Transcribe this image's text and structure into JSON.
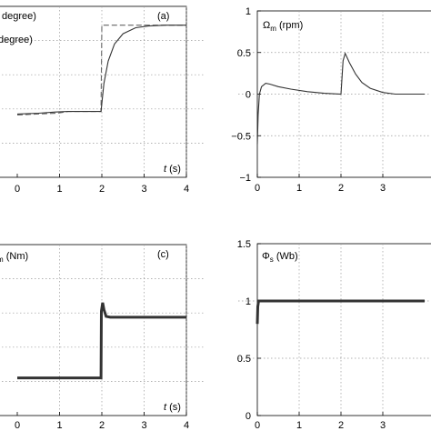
{
  "chart_data": [
    {
      "type": "line",
      "panel_label": "(a)",
      "legend": [
        "degree)",
        "degree)"
      ],
      "xlabel_var": "t",
      "xlabel_unit": " (s)",
      "x_ticks": [
        "0",
        "1",
        "2",
        "3",
        "4"
      ],
      "y_ticks": [],
      "xlim": [
        0,
        4
      ],
      "ylim": [
        0,
        100
      ],
      "grid": true,
      "series": [
        {
          "style": "dashed",
          "x": [
            0,
            0.95,
            1.2,
            1.97,
            1.98,
            2.0,
            4.0
          ],
          "y": [
            36.5,
            37.5,
            38.5,
            38.5,
            38.5,
            89,
            89
          ]
        },
        {
          "style": "solid",
          "x": [
            0,
            0.5,
            0.9,
            1.2,
            1.98,
            2.05,
            2.15,
            2.3,
            2.5,
            2.8,
            3.1,
            3.5,
            4.0
          ],
          "y": [
            37,
            37.5,
            38.2,
            38.5,
            38.5,
            55,
            68,
            78,
            84,
            87.5,
            88.5,
            89,
            89
          ]
        }
      ]
    },
    {
      "type": "line",
      "title_main": "Ω",
      "title_sub": "m",
      "title_unit": " (rpm)",
      "x_ticks": [
        "0",
        "1",
        "2",
        "3"
      ],
      "y_ticks": [
        "1",
        "0.5",
        "0",
        "−0.5",
        "−1"
      ],
      "xlim": [
        0,
        4
      ],
      "ylim": [
        -1,
        1
      ],
      "grid": true,
      "series": [
        {
          "style": "solid",
          "x": [
            0,
            0.02,
            0.05,
            0.1,
            0.2,
            0.3,
            0.5,
            0.8,
            1.2,
            1.6,
            2.0,
            2.05,
            2.1,
            2.2,
            2.35,
            2.5,
            2.7,
            3.0,
            3.3,
            4.0
          ],
          "y": [
            -0.6,
            -0.25,
            0.0,
            0.09,
            0.13,
            0.12,
            0.09,
            0.06,
            0.03,
            0.01,
            0.0,
            0.4,
            0.49,
            0.38,
            0.24,
            0.14,
            0.07,
            0.02,
            0.0,
            0.0
          ]
        }
      ]
    },
    {
      "type": "line",
      "panel_label": "(c)",
      "title_sub": "m",
      "title_unit": " (Nm)",
      "xlabel_var": "t",
      "xlabel_unit": " (s)",
      "x_ticks": [
        "0",
        "1",
        "2",
        "3",
        "4"
      ],
      "y_ticks": [],
      "xlim": [
        0,
        4
      ],
      "ylim": [
        0,
        100
      ],
      "grid": true,
      "series": [
        {
          "style": "thick",
          "x": [
            0,
            1.98,
            1.99,
            2.02,
            2.05,
            2.1,
            2.2,
            2.4,
            4.0
          ],
          "y": [
            22,
            22,
            61,
            66,
            62,
            58,
            57.5,
            57.5,
            57.5
          ]
        }
      ]
    },
    {
      "type": "line",
      "title_main": "Φ",
      "title_sub": "s",
      "title_unit": " (Wb)",
      "x_ticks": [
        "0",
        "1",
        "2",
        "3"
      ],
      "y_ticks": [
        "1.5",
        "1",
        "0.5",
        "0"
      ],
      "xlim": [
        0,
        4
      ],
      "ylim": [
        0,
        1.5
      ],
      "grid": true,
      "series": [
        {
          "style": "thick",
          "x": [
            0,
            0.01,
            0.03,
            0.05,
            4.0
          ],
          "y": [
            0.8,
            0.95,
            1.0,
            1.0,
            1.0
          ]
        }
      ]
    }
  ]
}
